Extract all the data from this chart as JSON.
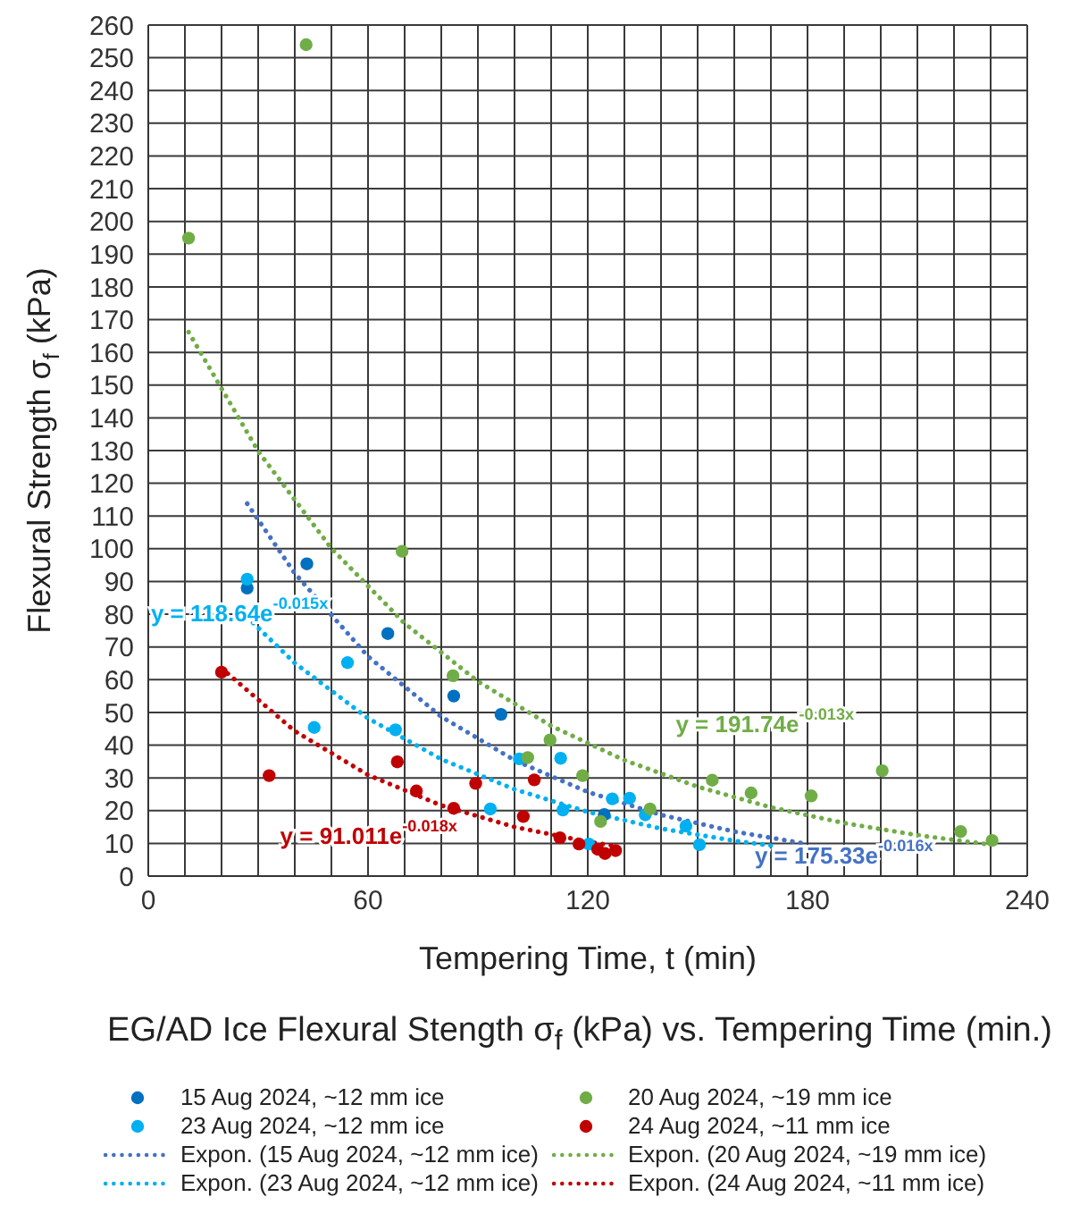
{
  "chart_data": {
    "type": "scatter",
    "title": "EG/AD Ice Flexural Stength  σ$_{f}$ (kPa) vs. Tempering Time (min.)",
    "xlabel": "Tempering Time, t  (min)",
    "ylabel": "Flexural Strength  σ$_{f}$  (kPa)",
    "xlim": [
      0,
      240
    ],
    "ylim": [
      0,
      260
    ],
    "xticks": [
      0,
      {
        "value": 10,
        "label": null
      },
      {
        "value": 20,
        "label": null
      },
      {
        "value": 30,
        "label": null
      },
      {
        "value": 40,
        "label": null
      },
      {
        "value": 50,
        "label": null
      },
      60,
      {
        "value": 70,
        "label": null
      },
      {
        "value": 80,
        "label": null
      },
      {
        "value": 90,
        "label": null
      },
      {
        "value": 100,
        "label": null
      },
      {
        "value": 110,
        "label": null
      },
      120,
      {
        "value": 130,
        "label": null
      },
      {
        "value": 140,
        "label": null
      },
      {
        "value": 150,
        "label": null
      },
      {
        "value": 160,
        "label": null
      },
      {
        "value": 170,
        "label": null
      },
      180,
      {
        "value": 190,
        "label": null
      },
      {
        "value": 200,
        "label": null
      },
      {
        "value": 210,
        "label": null
      },
      {
        "value": 220,
        "label": null
      },
      {
        "value": 230,
        "label": null
      },
      240
    ],
    "yticks": [
      0,
      10,
      20,
      30,
      40,
      50,
      60,
      70,
      80,
      90,
      100,
      110,
      120,
      130,
      140,
      150,
      160,
      170,
      180,
      190,
      200,
      210,
      220,
      230,
      240,
      250,
      260
    ],
    "grid": true,
    "legend": "bottom",
    "series": [
      {
        "name": "15 Aug 2024, ~12 mm ice",
        "marker": "circle",
        "color": "#0070c0",
        "x": [
          27,
          43.3,
          65.4,
          83.4,
          96.3,
          124.5
        ],
        "values": [
          88,
          95.4,
          74.1,
          55,
          49.4,
          18.8
        ]
      },
      {
        "name": "23 Aug 2024, ~12 mm ice",
        "marker": "circle",
        "color": "#00b0f0",
        "x": [
          27,
          45.3,
          54.4,
          67.5,
          93.4,
          101.3,
          112.6,
          113.2,
          120.3,
          126.7,
          131.4,
          135.7,
          146.8,
          150.5
        ],
        "values": [
          90.7,
          45.4,
          65.2,
          44.7,
          20.5,
          35.8,
          36,
          20.2,
          9.8,
          23.6,
          23.8,
          18.7,
          15.3,
          9.6
        ]
      },
      {
        "name": "Expon. (15 Aug 2024, ~12 mm ice)",
        "type": "line",
        "line_style": "dotted",
        "color": "#4472c4",
        "x": [
          27,
          40,
          60,
          80,
          100,
          120,
          140,
          160,
          180
        ],
        "values": [
          113.8,
          92.5,
          67.1,
          48.7,
          35.4,
          25.7,
          18.7,
          13.6,
          9.8
        ]
      },
      {
        "name": "Expon. (23 Aug 2024, ~12 mm ice)",
        "type": "line",
        "line_style": "dotted",
        "color": "#00b0f0",
        "x": [
          27,
          40,
          60,
          80,
          100,
          120,
          140,
          160,
          170
        ],
        "values": [
          79.1,
          65.1,
          48.2,
          35.7,
          26.5,
          19.6,
          14.5,
          10.8,
          9.3
        ]
      },
      {
        "name": "20 Aug 2024, ~19 mm ice",
        "marker": "circle",
        "color": "#70ad47",
        "x": [
          11,
          43.1,
          69.3,
          83.2,
          103.6,
          109.7,
          118.6,
          123.5,
          137,
          154,
          164.6,
          181,
          200.4,
          221.8,
          230.4
        ],
        "values": [
          194.9,
          254,
          99.2,
          61.2,
          36.2,
          41.6,
          30.7,
          16.7,
          20.5,
          29.3,
          25.4,
          24.5,
          32.2,
          13.6,
          10.9
        ]
      },
      {
        "name": "24 Aug 2024, ~11 mm ice",
        "marker": "circle",
        "color": "#c00000",
        "x": [
          20,
          33,
          68,
          73.2,
          83.4,
          89.4,
          102.4,
          105.4,
          112.4,
          117.6,
          122.7,
          124.7,
          127.6
        ],
        "values": [
          62.3,
          30.7,
          34.9,
          26,
          20.7,
          28.3,
          18.2,
          29.4,
          11.7,
          9.8,
          8.2,
          6.9,
          7.8
        ]
      },
      {
        "name": "Expon. (20 Aug 2024, ~19 mm ice)",
        "type": "line",
        "line_style": "dotted",
        "color": "#70ad47",
        "x": [
          11,
          30,
          50,
          70,
          90,
          110,
          130,
          150,
          170,
          190,
          210,
          230
        ],
        "values": [
          166.2,
          129.8,
          100.1,
          77.2,
          59.5,
          45.9,
          35.4,
          27.3,
          21,
          16.2,
          12.5,
          9.6
        ]
      },
      {
        "name": "Expon. (24 Aug 2024, ~11 mm ice)",
        "type": "line",
        "line_style": "dotted",
        "color": "#c00000",
        "x": [
          20,
          40,
          60,
          80,
          100,
          120,
          128
        ],
        "values": [
          63.5,
          44.3,
          30.9,
          21.6,
          15,
          10.5,
          9.1
        ]
      }
    ],
    "annotations": [
      "y = 175.33e$^{-0.016x}$",
      "y = 118.64e$^{-0.015x}$",
      "y = 191.74e$^{-0.013x}$",
      "y = 91.011e$^{-0.018x}$"
    ]
  }
}
